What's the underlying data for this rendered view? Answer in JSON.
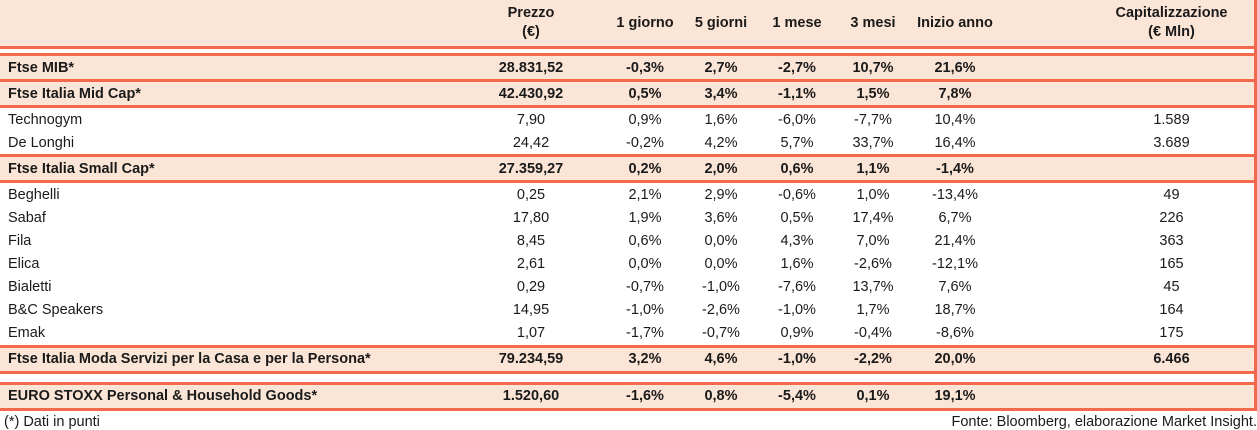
{
  "colors": {
    "row_highlight": "#fbe5d6",
    "grid_line": "#f4694c",
    "text": "#1a1a1a"
  },
  "table": {
    "header": {
      "name": "",
      "prezzo_line1": "Prezzo",
      "prezzo_line2": "(€)",
      "d1": "1 giorno",
      "d5": "5 giorni",
      "m1": "1 mese",
      "m3": "3 mesi",
      "ytd": "Inizio anno",
      "cap_line1": "Capitalizzazione",
      "cap_line2": "(€ Mln)"
    },
    "rows": [
      {
        "type": "index",
        "name": "Ftse MIB*",
        "prezzo": "28.831,52",
        "d1": "-0,3%",
        "d5": "2,7%",
        "m1": "-2,7%",
        "m3": "10,7%",
        "ytd": "21,6%",
        "cap": ""
      },
      {
        "type": "index",
        "name": "Ftse Italia Mid Cap*",
        "prezzo": "42.430,92",
        "d1": "0,5%",
        "d5": "3,4%",
        "m1": "-1,1%",
        "m3": "1,5%",
        "ytd": "7,8%",
        "cap": ""
      },
      {
        "type": "stock",
        "name": "Technogym",
        "prezzo": "7,90",
        "d1": "0,9%",
        "d5": "1,6%",
        "m1": "-6,0%",
        "m3": "-7,7%",
        "ytd": "10,4%",
        "cap": "1.589"
      },
      {
        "type": "stock",
        "name": "De Longhi",
        "prezzo": "24,42",
        "d1": "-0,2%",
        "d5": "4,2%",
        "m1": "5,7%",
        "m3": "33,7%",
        "ytd": "16,4%",
        "cap": "3.689"
      },
      {
        "type": "index",
        "name": "Ftse Italia Small Cap*",
        "prezzo": "27.359,27",
        "d1": "0,2%",
        "d5": "2,0%",
        "m1": "0,6%",
        "m3": "1,1%",
        "ytd": "-1,4%",
        "cap": ""
      },
      {
        "type": "stock",
        "name": "Beghelli",
        "prezzo": "0,25",
        "d1": "2,1%",
        "d5": "2,9%",
        "m1": "-0,6%",
        "m3": "1,0%",
        "ytd": "-13,4%",
        "cap": "49"
      },
      {
        "type": "stock",
        "name": "Sabaf",
        "prezzo": "17,80",
        "d1": "1,9%",
        "d5": "3,6%",
        "m1": "0,5%",
        "m3": "17,4%",
        "ytd": "6,7%",
        "cap": "226"
      },
      {
        "type": "stock",
        "name": "Fila",
        "prezzo": "8,45",
        "d1": "0,6%",
        "d5": "0,0%",
        "m1": "4,3%",
        "m3": "7,0%",
        "ytd": "21,4%",
        "cap": "363"
      },
      {
        "type": "stock",
        "name": "Elica",
        "prezzo": "2,61",
        "d1": "0,0%",
        "d5": "0,0%",
        "m1": "1,6%",
        "m3": "-2,6%",
        "ytd": "-12,1%",
        "cap": "165"
      },
      {
        "type": "stock",
        "name": "Bialetti",
        "prezzo": "0,29",
        "d1": "-0,7%",
        "d5": "-1,0%",
        "m1": "-7,6%",
        "m3": "13,7%",
        "ytd": "7,6%",
        "cap": "45"
      },
      {
        "type": "stock",
        "name": "B&C Speakers",
        "prezzo": "14,95",
        "d1": "-1,0%",
        "d5": "-2,6%",
        "m1": "-1,0%",
        "m3": "1,7%",
        "ytd": "18,7%",
        "cap": "164"
      },
      {
        "type": "stock",
        "name": "Emak",
        "prezzo": "1,07",
        "d1": "-1,7%",
        "d5": "-0,7%",
        "m1": "0,9%",
        "m3": "-0,4%",
        "ytd": "-8,6%",
        "cap": "175"
      },
      {
        "type": "index",
        "name": "Ftse Italia Moda Servizi per la Casa e per la Persona*",
        "prezzo": "79.234,59",
        "d1": "3,2%",
        "d5": "4,6%",
        "m1": "-1,0%",
        "m3": "-2,2%",
        "ytd": "20,0%",
        "cap": "6.466"
      },
      {
        "type": "gap"
      },
      {
        "type": "index",
        "name": "EURO STOXX Personal & Household Goods*",
        "prezzo": "1.520,60",
        "d1": "-1,6%",
        "d5": "0,8%",
        "m1": "-5,4%",
        "m3": "0,1%",
        "ytd": "19,1%",
        "cap": ""
      }
    ]
  },
  "footer": {
    "note": "(*) Dati in punti",
    "source": "Fonte: Bloomberg, elaborazione Market Insight."
  }
}
